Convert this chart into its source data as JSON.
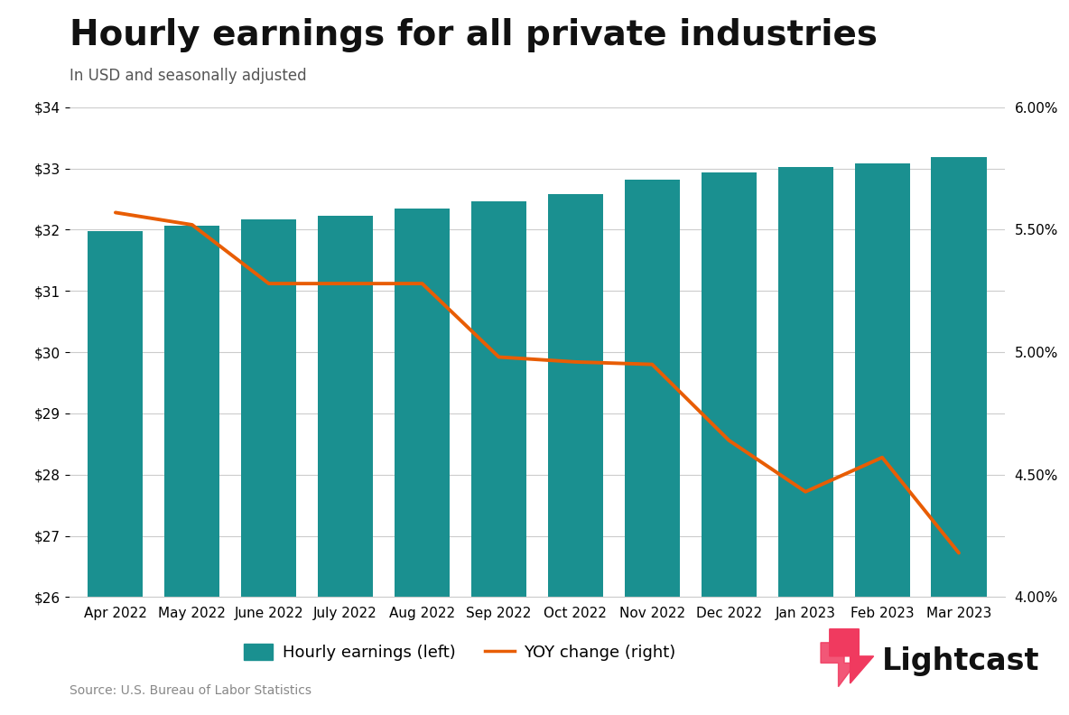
{
  "title": "Hourly earnings for all private industries",
  "subtitle": "In USD and seasonally adjusted",
  "source": "Source: U.S. Bureau of Labor Statistics",
  "categories": [
    "Apr 2022",
    "May 2022",
    "June 2022",
    "July 2022",
    "Aug 2022",
    "Sep 2022",
    "Oct 2022",
    "Nov 2022",
    "Dec 2022",
    "Jan 2023",
    "Feb 2023",
    "Mar 2023"
  ],
  "hourly_earnings": [
    31.97,
    32.07,
    32.17,
    32.23,
    32.35,
    32.46,
    32.58,
    32.82,
    32.94,
    33.03,
    33.09,
    33.18
  ],
  "yoy_change": [
    5.57,
    5.52,
    5.28,
    5.28,
    5.28,
    4.98,
    4.96,
    4.95,
    4.64,
    4.43,
    4.57,
    4.18
  ],
  "bar_color": "#1a9090",
  "line_color": "#e85d04",
  "background_color": "#ffffff",
  "ylim_left": [
    26,
    34
  ],
  "ylim_right": [
    4.0,
    6.0
  ],
  "yticks_left": [
    26,
    27,
    28,
    29,
    30,
    31,
    32,
    33,
    34
  ],
  "yticks_right": [
    4.0,
    4.5,
    5.0,
    5.5,
    6.0
  ],
  "title_fontsize": 28,
  "subtitle_fontsize": 12,
  "axis_fontsize": 11,
  "legend_fontsize": 13,
  "lightcast_text": "Lightcast",
  "lightcast_color": "#111111",
  "logo_color": "#f03a5f"
}
